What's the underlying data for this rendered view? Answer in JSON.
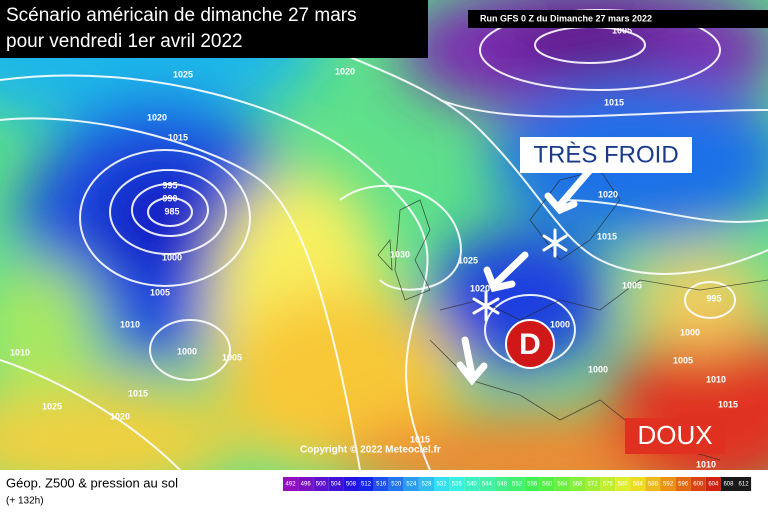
{
  "title_line1": "Scénario américain de dimanche 27 mars",
  "title_line2": "pour vendredi 1er avril 2022",
  "run_info": "Run GFS 0 Z du Dimanche 27 mars 2022",
  "annotations": {
    "cold": "TRÈS FROID",
    "mild": "DOUX",
    "depression": "D"
  },
  "copyright": "Copyright © 2022 Meteociel.fr",
  "legend": {
    "title": "Géop. Z500 & pression au sol",
    "lead_time": "(+ 132h)",
    "scale": [
      492,
      496,
      500,
      504,
      508,
      512,
      516,
      520,
      524,
      528,
      532,
      536,
      540,
      544,
      548,
      552,
      556,
      560,
      564,
      568,
      572,
      576,
      580,
      584,
      588,
      592,
      596,
      600,
      604,
      608,
      612
    ]
  },
  "isobar_labels": [
    "1025",
    "1020",
    "1020",
    "1015",
    "995",
    "990",
    "985",
    "1000",
    "1005",
    "1010",
    "1000",
    "1005",
    "1015",
    "1020",
    "1025",
    "1030",
    "1025",
    "1020",
    "1000",
    "1005",
    "1015",
    "1020",
    "1015",
    "1005",
    "995",
    "1000",
    "1005",
    "1000",
    "1010",
    "1015",
    "1010",
    "1015",
    "1010"
  ]
}
